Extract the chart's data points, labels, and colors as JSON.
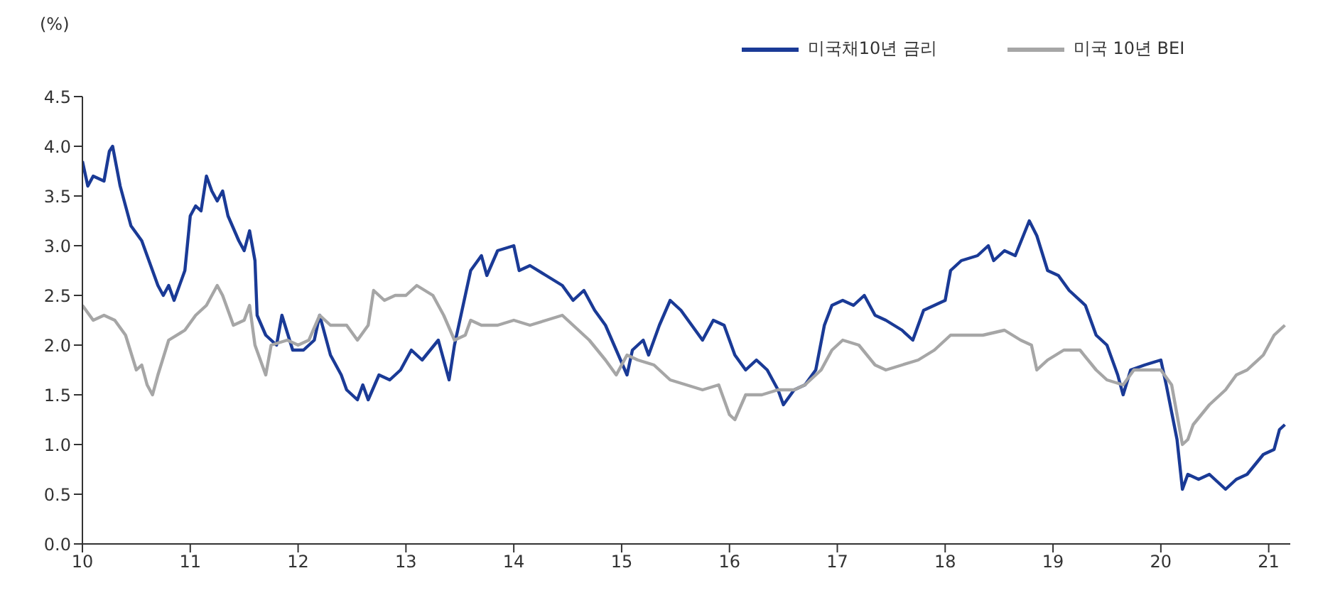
{
  "chart_data": {
    "type": "line",
    "ylabel": "(%)",
    "xlim": [
      10,
      21.2
    ],
    "xticks": [
      10,
      11,
      12,
      13,
      14,
      15,
      16,
      17,
      18,
      19,
      20,
      21
    ],
    "ylim": [
      0,
      4.5
    ],
    "yticks": [
      {
        "value": 0,
        "label": "0.0"
      },
      {
        "value": 0.5,
        "label": "0.5"
      },
      {
        "value": 1,
        "label": "1.0"
      },
      {
        "value": 1.5,
        "label": "1.5"
      },
      {
        "value": 2,
        "label": "2.0"
      },
      {
        "value": 2.5,
        "label": "2.5"
      },
      {
        "value": 3,
        "label": "3.0"
      },
      {
        "value": 3.5,
        "label": "3.5"
      },
      {
        "value": 4,
        "label": "4.0"
      },
      {
        "value": 4.5,
        "label": "4.5"
      }
    ],
    "grid": false,
    "legend": "top",
    "marker": "none",
    "line_style": "solid",
    "series": [
      {
        "name": "미국채10년 금리",
        "color": "#1a3a96",
        "x": [
          10.0,
          10.05,
          10.1,
          10.2,
          10.25,
          10.28,
          10.35,
          10.45,
          10.55,
          10.6,
          10.7,
          10.75,
          10.8,
          10.85,
          10.95,
          11.0,
          11.05,
          11.1,
          11.15,
          11.2,
          11.25,
          11.3,
          11.35,
          11.45,
          11.5,
          11.55,
          11.6,
          11.62,
          11.7,
          11.8,
          11.85,
          11.95,
          12.05,
          12.15,
          12.2,
          12.3,
          12.4,
          12.45,
          12.55,
          12.6,
          12.65,
          12.75,
          12.85,
          12.95,
          13.05,
          13.15,
          13.3,
          13.4,
          13.45,
          13.55,
          13.6,
          13.7,
          13.75,
          13.85,
          14.0,
          14.05,
          14.15,
          14.3,
          14.45,
          14.55,
          14.65,
          14.75,
          14.85,
          14.95,
          15.05,
          15.1,
          15.2,
          15.25,
          15.35,
          15.45,
          15.55,
          15.65,
          15.75,
          15.85,
          15.95,
          16.05,
          16.15,
          16.25,
          16.35,
          16.45,
          16.5,
          16.6,
          16.7,
          16.8,
          16.88,
          16.95,
          17.05,
          17.15,
          17.25,
          17.35,
          17.45,
          17.6,
          17.7,
          17.8,
          17.9,
          18.0,
          18.05,
          18.15,
          18.3,
          18.4,
          18.45,
          18.55,
          18.65,
          18.78,
          18.85,
          18.95,
          19.05,
          19.15,
          19.3,
          19.4,
          19.5,
          19.6,
          19.65,
          19.72,
          19.85,
          20.0,
          20.05,
          20.15,
          20.2,
          20.25,
          20.35,
          20.45,
          20.6,
          20.7,
          20.8,
          20.95,
          21.05,
          21.1,
          21.15
        ],
        "values": [
          3.85,
          3.6,
          3.7,
          3.65,
          3.95,
          4.0,
          3.6,
          3.2,
          3.05,
          2.9,
          2.6,
          2.5,
          2.6,
          2.45,
          2.75,
          3.3,
          3.4,
          3.35,
          3.7,
          3.55,
          3.45,
          3.55,
          3.3,
          3.05,
          2.95,
          3.15,
          2.85,
          2.3,
          2.1,
          2.0,
          2.3,
          1.95,
          1.95,
          2.05,
          2.3,
          1.9,
          1.7,
          1.55,
          1.45,
          1.6,
          1.45,
          1.7,
          1.65,
          1.75,
          1.95,
          1.85,
          2.05,
          1.65,
          2.0,
          2.5,
          2.75,
          2.9,
          2.7,
          2.95,
          3.0,
          2.75,
          2.8,
          2.7,
          2.6,
          2.45,
          2.55,
          2.35,
          2.2,
          1.95,
          1.7,
          1.95,
          2.05,
          1.9,
          2.2,
          2.45,
          2.35,
          2.2,
          2.05,
          2.25,
          2.2,
          1.9,
          1.75,
          1.85,
          1.75,
          1.55,
          1.4,
          1.55,
          1.6,
          1.75,
          2.2,
          2.4,
          2.45,
          2.4,
          2.5,
          2.3,
          2.25,
          2.15,
          2.05,
          2.35,
          2.4,
          2.45,
          2.75,
          2.85,
          2.9,
          3.0,
          2.85,
          2.95,
          2.9,
          3.25,
          3.1,
          2.75,
          2.7,
          2.55,
          2.4,
          2.1,
          2.0,
          1.7,
          1.5,
          1.75,
          1.8,
          1.85,
          1.6,
          1.05,
          0.55,
          0.7,
          0.65,
          0.7,
          0.55,
          0.65,
          0.7,
          0.9,
          0.95,
          1.15,
          1.2
        ]
      },
      {
        "name": "미국 10년 BEI",
        "color": "#a6a6a6",
        "x": [
          10.0,
          10.1,
          10.2,
          10.3,
          10.4,
          10.5,
          10.55,
          10.6,
          10.65,
          10.7,
          10.8,
          10.95,
          11.05,
          11.15,
          11.25,
          11.3,
          11.4,
          11.5,
          11.55,
          11.6,
          11.65,
          11.7,
          11.75,
          11.9,
          12.0,
          12.1,
          12.2,
          12.3,
          12.45,
          12.55,
          12.65,
          12.7,
          12.8,
          12.9,
          13.0,
          13.1,
          13.25,
          13.35,
          13.45,
          13.55,
          13.6,
          13.7,
          13.85,
          14.0,
          14.15,
          14.3,
          14.45,
          14.55,
          14.7,
          14.85,
          14.95,
          15.05,
          15.15,
          15.3,
          15.45,
          15.6,
          15.75,
          15.9,
          16.0,
          16.05,
          16.15,
          16.3,
          16.45,
          16.6,
          16.7,
          16.85,
          16.95,
          17.05,
          17.2,
          17.35,
          17.45,
          17.6,
          17.75,
          17.9,
          18.05,
          18.2,
          18.35,
          18.55,
          18.7,
          18.8,
          18.85,
          18.95,
          19.1,
          19.25,
          19.4,
          19.5,
          19.65,
          19.75,
          19.9,
          20.0,
          20.1,
          20.2,
          20.25,
          20.3,
          20.45,
          20.6,
          20.7,
          20.8,
          20.95,
          21.05,
          21.15
        ],
        "values": [
          2.4,
          2.25,
          2.3,
          2.25,
          2.1,
          1.75,
          1.8,
          1.6,
          1.5,
          1.7,
          2.05,
          2.15,
          2.3,
          2.4,
          2.6,
          2.5,
          2.2,
          2.25,
          2.4,
          2.0,
          1.85,
          1.7,
          2.0,
          2.05,
          2.0,
          2.05,
          2.3,
          2.2,
          2.2,
          2.05,
          2.2,
          2.55,
          2.45,
          2.5,
          2.5,
          2.6,
          2.5,
          2.3,
          2.05,
          2.1,
          2.25,
          2.2,
          2.2,
          2.25,
          2.2,
          2.25,
          2.3,
          2.2,
          2.05,
          1.85,
          1.7,
          1.9,
          1.85,
          1.8,
          1.65,
          1.6,
          1.55,
          1.6,
          1.3,
          1.25,
          1.5,
          1.5,
          1.55,
          1.55,
          1.6,
          1.75,
          1.95,
          2.05,
          2.0,
          1.8,
          1.75,
          1.8,
          1.85,
          1.95,
          2.1,
          2.1,
          2.1,
          2.15,
          2.05,
          2.0,
          1.75,
          1.85,
          1.95,
          1.95,
          1.75,
          1.65,
          1.6,
          1.75,
          1.75,
          1.75,
          1.6,
          1.0,
          1.05,
          1.2,
          1.4,
          1.55,
          1.7,
          1.75,
          1.9,
          2.1,
          2.2
        ]
      }
    ]
  }
}
